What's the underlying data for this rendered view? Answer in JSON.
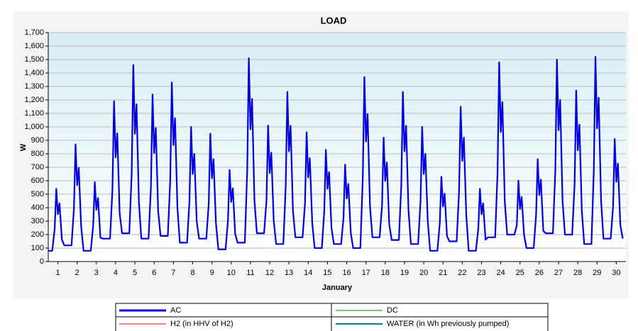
{
  "chart_data": {
    "type": "line",
    "title": "LOAD",
    "xlabel": "January",
    "ylabel": "W",
    "xlim": [
      0,
      720
    ],
    "xticks": [
      {
        "value": 12,
        "label": "1"
      },
      {
        "value": 36,
        "label": "2"
      },
      {
        "value": 60,
        "label": "3"
      },
      {
        "value": 84,
        "label": "4"
      },
      {
        "value": 108,
        "label": "5"
      },
      {
        "value": 132,
        "label": "6"
      },
      {
        "value": 156,
        "label": "7"
      },
      {
        "value": 180,
        "label": "8"
      },
      {
        "value": 204,
        "label": "9"
      },
      {
        "value": 228,
        "label": "10"
      },
      {
        "value": 252,
        "label": "11"
      },
      {
        "value": 276,
        "label": "12"
      },
      {
        "value": 300,
        "label": "13"
      },
      {
        "value": 324,
        "label": "14"
      },
      {
        "value": 348,
        "label": "15"
      },
      {
        "value": 372,
        "label": "16"
      },
      {
        "value": 396,
        "label": "17"
      },
      {
        "value": 420,
        "label": "18"
      },
      {
        "value": 444,
        "label": "19"
      },
      {
        "value": 468,
        "label": "20"
      },
      {
        "value": 492,
        "label": "21"
      },
      {
        "value": 516,
        "label": "22"
      },
      {
        "value": 540,
        "label": "23"
      },
      {
        "value": 564,
        "label": "24"
      },
      {
        "value": 588,
        "label": "25"
      },
      {
        "value": 612,
        "label": "26"
      },
      {
        "value": 636,
        "label": "27"
      },
      {
        "value": 660,
        "label": "28"
      },
      {
        "value": 684,
        "label": "29"
      },
      {
        "value": 708,
        "label": "30"
      }
    ],
    "ylim": [
      0,
      1700
    ],
    "yticks": [
      0,
      100,
      200,
      300,
      400,
      500,
      600,
      700,
      800,
      900,
      {
        "value": 1000,
        "label": "1,000"
      },
      {
        "value": 1100,
        "label": "1,100"
      },
      {
        "value": 1200,
        "label": "1,200"
      },
      {
        "value": 1300,
        "label": "1,300"
      },
      {
        "value": 1400,
        "label": "1,400"
      },
      {
        "value": 1500,
        "label": "1,500"
      },
      {
        "value": 1600,
        "label": "1,600"
      },
      {
        "value": 1700,
        "label": "1,700"
      }
    ],
    "grid": true,
    "x": [
      0,
      5,
      8,
      10,
      12,
      14,
      17,
      20,
      24,
      29,
      32,
      34,
      36,
      38,
      41,
      44,
      48,
      53,
      56,
      58,
      60,
      62,
      65,
      68,
      72,
      77,
      80,
      82,
      84,
      86,
      89,
      92,
      96,
      101,
      104,
      106,
      108,
      110,
      113,
      116,
      120,
      125,
      128,
      130,
      132,
      134,
      137,
      140,
      144,
      149,
      152,
      154,
      156,
      158,
      161,
      164,
      168,
      173,
      176,
      178,
      180,
      182,
      185,
      188,
      192,
      197,
      200,
      202,
      204,
      206,
      209,
      212,
      216,
      221,
      224,
      226,
      228,
      230,
      233,
      236,
      240,
      245,
      248,
      250,
      252,
      254,
      257,
      260,
      264,
      269,
      272,
      274,
      276,
      278,
      281,
      284,
      288,
      293,
      296,
      298,
      300,
      302,
      305,
      308,
      312,
      317,
      320,
      322,
      324,
      326,
      329,
      332,
      336,
      341,
      344,
      346,
      348,
      350,
      353,
      356,
      360,
      365,
      368,
      370,
      372,
      374,
      377,
      380,
      384,
      389,
      392,
      394,
      396,
      398,
      401,
      404,
      408,
      413,
      416,
      418,
      420,
      422,
      425,
      428,
      432,
      437,
      440,
      442,
      444,
      446,
      449,
      452,
      456,
      461,
      464,
      466,
      468,
      470,
      473,
      476,
      480,
      485,
      488,
      490,
      492,
      494,
      497,
      500,
      504,
      509,
      512,
      514,
      516,
      518,
      521,
      524,
      528,
      533,
      536,
      538,
      540,
      542,
      545,
      548,
      552,
      557,
      560,
      562,
      564,
      566,
      569,
      572,
      576,
      581,
      584,
      586,
      588,
      590,
      593,
      596,
      600,
      605,
      608,
      610,
      612,
      614,
      617,
      620,
      624,
      629,
      632,
      634,
      636,
      638,
      641,
      644,
      648,
      653,
      656,
      658,
      660,
      662,
      665,
      668,
      672,
      677,
      680,
      682,
      684,
      686,
      689,
      692,
      696,
      701,
      704,
      706,
      708,
      710,
      713,
      716
    ],
    "series": [
      {
        "name": "AC",
        "color": "#0000e0",
        "values": [
          80,
          80,
          243,
          540,
          351,
          432,
          162,
          120,
          120,
          120,
          392,
          870,
          566,
          696,
          261,
          80,
          80,
          80,
          266,
          590,
          384,
          472,
          177,
          170,
          170,
          170,
          536,
          1190,
          774,
          952,
          357,
          210,
          210,
          210,
          657,
          1460,
          949,
          1168,
          438,
          170,
          170,
          170,
          558,
          1240,
          806,
          992,
          372,
          190,
          190,
          190,
          599,
          1330,
          865,
          1064,
          399,
          140,
          140,
          140,
          450,
          1000,
          650,
          800,
          300,
          170,
          170,
          170,
          428,
          950,
          618,
          760,
          285,
          90,
          90,
          90,
          306,
          680,
          442,
          544,
          204,
          140,
          140,
          140,
          680,
          1510,
          982,
          1208,
          453,
          210,
          210,
          210,
          455,
          1010,
          657,
          808,
          303,
          130,
          130,
          130,
          567,
          1260,
          819,
          1008,
          378,
          180,
          180,
          180,
          432,
          960,
          624,
          768,
          288,
          100,
          100,
          100,
          374,
          830,
          540,
          664,
          249,
          130,
          130,
          130,
          324,
          720,
          468,
          576,
          216,
          100,
          100,
          100,
          617,
          1370,
          891,
          1096,
          411,
          180,
          180,
          180,
          414,
          920,
          598,
          736,
          276,
          160,
          160,
          160,
          567,
          1260,
          819,
          1008,
          378,
          130,
          130,
          130,
          450,
          1000,
          650,
          800,
          300,
          80,
          80,
          80,
          284,
          630,
          410,
          504,
          189,
          150,
          150,
          150,
          518,
          1150,
          748,
          920,
          345,
          80,
          80,
          80,
          243,
          540,
          351,
          432,
          162,
          180,
          180,
          180,
          666,
          1480,
          962,
          1184,
          444,
          200,
          200,
          200,
          270,
          600,
          390,
          480,
          200,
          100,
          100,
          100,
          342,
          760,
          494,
          608,
          228,
          210,
          210,
          210,
          675,
          1500,
          975,
          1200,
          450,
          200,
          200,
          200,
          572,
          1270,
          826,
          1016,
          381,
          130,
          130,
          130,
          684,
          1520,
          988,
          1216,
          456,
          170,
          170,
          170,
          410,
          910,
          592,
          728,
          273,
          170
        ]
      },
      {
        "name": "DC",
        "color": "#008000"
      },
      {
        "name": "H2 (in HHV of H2)",
        "color": "#ff0000"
      },
      {
        "name": "WATER (in Wh previously pumped)",
        "color": "#008080"
      }
    ]
  }
}
